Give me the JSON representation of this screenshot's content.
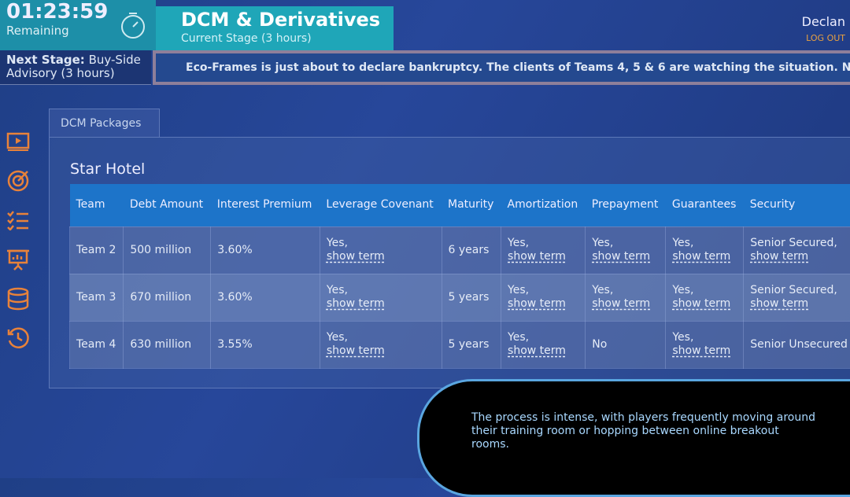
{
  "timer": {
    "time": "01:23:59",
    "label": "Remaining"
  },
  "stage": {
    "title": "DCM & Derivatives",
    "subtitle": "Current Stage (3 hours)"
  },
  "next_stage": {
    "label": "Next Stage:",
    "value": "Buy-Side Advisory (3 hours)"
  },
  "news": "Eco-Frames is just about to declare bankruptcy. The clients of Teams 4, 5 & 6 are watching the situation. Not reaching a deal might re",
  "user": {
    "name": "Declan",
    "logout": "LOG OUT"
  },
  "sidebar": [
    "video-icon",
    "target-icon",
    "checklist-icon",
    "presentation-icon",
    "database-icon",
    "history-icon"
  ],
  "tab": "DCM Packages",
  "panel_title": "Star Hotel",
  "columns": [
    "Team",
    "Debt Amount",
    "Interest Premium",
    "Leverage Covenant",
    "Maturity",
    "Amortization",
    "Prepayment",
    "Guarantees",
    "Security"
  ],
  "rows": [
    [
      {
        "t": "Team 2"
      },
      {
        "t": "500 million"
      },
      {
        "t": "3.60%"
      },
      {
        "t": "Yes,",
        "l": "show term"
      },
      {
        "t": "6 years"
      },
      {
        "t": "Yes,",
        "l": "show term"
      },
      {
        "t": "Yes,",
        "l": "show term"
      },
      {
        "t": "Yes,",
        "l": "show term"
      },
      {
        "t": "Senior Secured,",
        "l": "show term"
      }
    ],
    [
      {
        "t": "Team 3"
      },
      {
        "t": "670 million"
      },
      {
        "t": "3.60%"
      },
      {
        "t": "Yes,",
        "l": "show term"
      },
      {
        "t": "5 years"
      },
      {
        "t": "Yes,",
        "l": "show term"
      },
      {
        "t": "Yes,",
        "l": "show term"
      },
      {
        "t": "Yes,",
        "l": "show term"
      },
      {
        "t": "Senior Secured,",
        "l": "show term"
      }
    ],
    [
      {
        "t": "Team 4"
      },
      {
        "t": "630 million"
      },
      {
        "t": "3.55%"
      },
      {
        "t": "Yes,",
        "l": "show term"
      },
      {
        "t": "5 years"
      },
      {
        "t": "Yes,",
        "l": "show term"
      },
      {
        "t": "No"
      },
      {
        "t": "Yes,",
        "l": "show term"
      },
      {
        "t": "Senior Unsecured"
      }
    ]
  ],
  "caption": "The process is intense, with players frequently moving around their training room or hopping between online breakout rooms.",
  "colors": {
    "accent": "#1fa6b8",
    "header": "#1d74c9",
    "icons": "#e8823a",
    "logout": "#e8a040"
  }
}
